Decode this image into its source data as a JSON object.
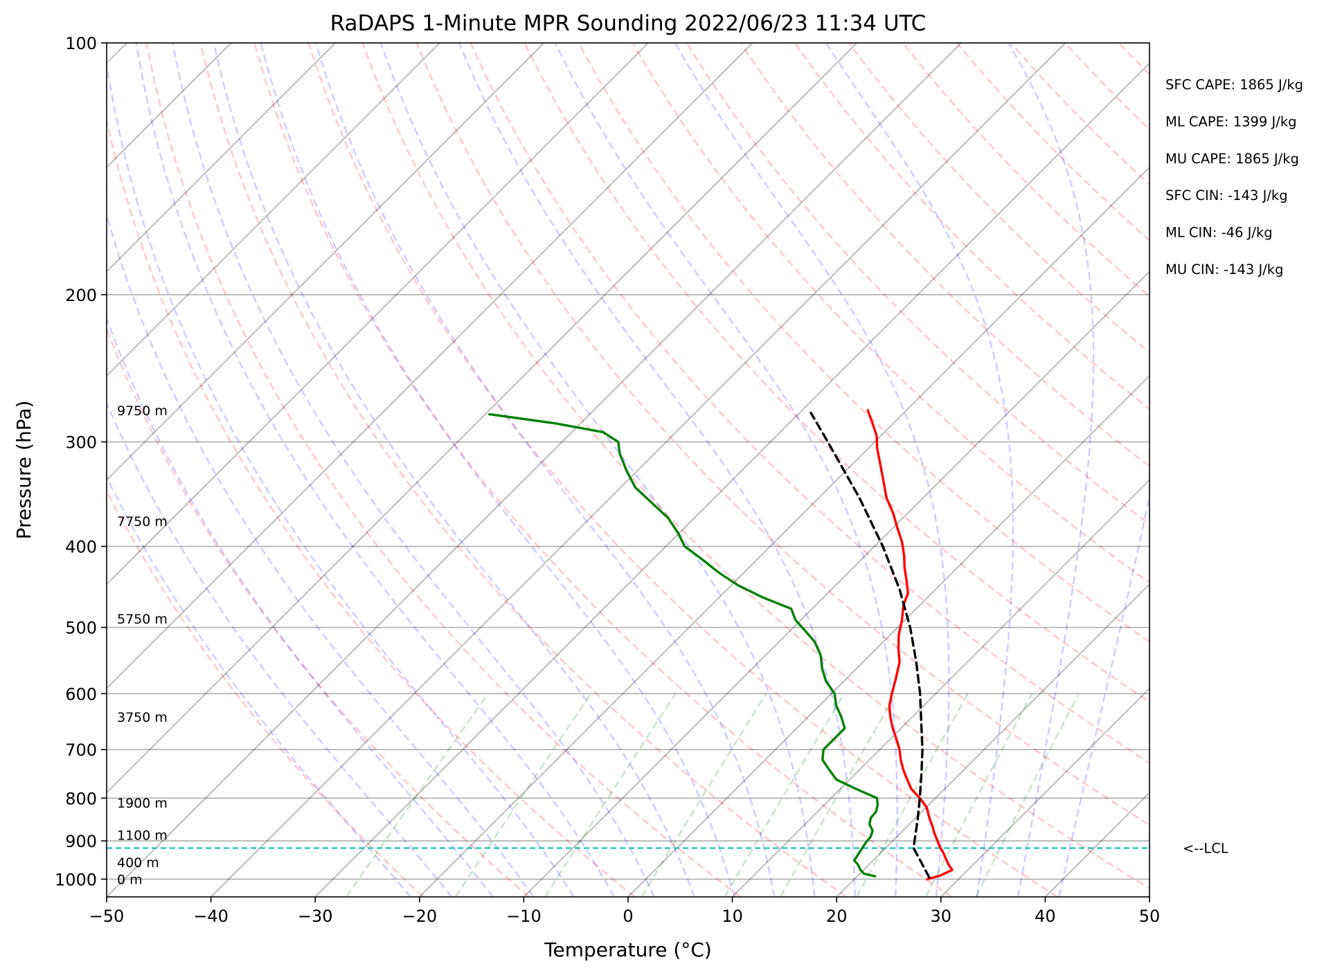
{
  "chart_data": {
    "type": "line",
    "title": "RaDAPS 1-Minute MPR Sounding 2022/06/23 11:34 UTC",
    "xlabel": "Temperature (°C)",
    "ylabel": "Pressure (hPa)",
    "xlim": [
      -50,
      50
    ],
    "ylim": [
      1050,
      100
    ],
    "y_scale": "log",
    "skew_t": true,
    "grid": true,
    "x_ticks": [
      -50,
      -40,
      -30,
      -20,
      -10,
      0,
      10,
      20,
      30,
      40,
      50
    ],
    "x_tick_labels": [
      "−50",
      "−40",
      "−30",
      "−20",
      "−10",
      "0",
      "10",
      "20",
      "30",
      "40",
      "50"
    ],
    "y_ticks": [
      1000,
      900,
      800,
      700,
      600,
      500,
      400,
      300,
      200,
      100
    ],
    "y_tick_labels": [
      "1000",
      "900",
      "800",
      "700",
      "600",
      "500",
      "400",
      "300",
      "200",
      "100"
    ],
    "series": [
      {
        "role": "temperature",
        "color": "#ff0000",
        "points": [
          [
            1000,
            27.0
          ],
          [
            990,
            27.9
          ],
          [
            975,
            28.5
          ],
          [
            960,
            27.6
          ],
          [
            945,
            26.8
          ],
          [
            930,
            26.0
          ],
          [
            915,
            25.1
          ],
          [
            900,
            24.3
          ],
          [
            880,
            23.2
          ],
          [
            866,
            22.5
          ],
          [
            850,
            21.6
          ],
          [
            835,
            20.8
          ],
          [
            820,
            20.0
          ],
          [
            800,
            18.5
          ],
          [
            780,
            16.8
          ],
          [
            760,
            15.5
          ],
          [
            740,
            14.2
          ],
          [
            720,
            13.0
          ],
          [
            700,
            11.9
          ],
          [
            680,
            10.6
          ],
          [
            660,
            9.2
          ],
          [
            640,
            7.9
          ],
          [
            620,
            6.7
          ],
          [
            600,
            5.8
          ],
          [
            575,
            4.7
          ],
          [
            550,
            3.5
          ],
          [
            530,
            2.1
          ],
          [
            510,
            0.8
          ],
          [
            490,
            -0.3
          ],
          [
            470,
            -1.6
          ],
          [
            455,
            -2.3
          ],
          [
            440,
            -3.6
          ],
          [
            425,
            -5.0
          ],
          [
            410,
            -6.3
          ],
          [
            395,
            -7.8
          ],
          [
            380,
            -9.6
          ],
          [
            365,
            -11.4
          ],
          [
            350,
            -13.5
          ],
          [
            335,
            -15.3
          ],
          [
            320,
            -17.2
          ],
          [
            305,
            -19.2
          ],
          [
            295,
            -20.4
          ],
          [
            285,
            -22.0
          ],
          [
            275,
            -23.7
          ]
        ]
      },
      {
        "role": "dewpoint",
        "color": "#008000",
        "points": [
          [
            992,
            21.7
          ],
          [
            985,
            20.4
          ],
          [
            975,
            19.7
          ],
          [
            960,
            18.9
          ],
          [
            950,
            18.2
          ],
          [
            935,
            18.0
          ],
          [
            920,
            17.8
          ],
          [
            905,
            17.6
          ],
          [
            890,
            17.5
          ],
          [
            875,
            17.1
          ],
          [
            860,
            16.2
          ],
          [
            845,
            15.7
          ],
          [
            830,
            15.6
          ],
          [
            815,
            15.1
          ],
          [
            800,
            14.4
          ],
          [
            780,
            11.5
          ],
          [
            760,
            8.7
          ],
          [
            740,
            7.1
          ],
          [
            720,
            5.5
          ],
          [
            700,
            4.6
          ],
          [
            680,
            4.6
          ],
          [
            660,
            4.6
          ],
          [
            640,
            3.2
          ],
          [
            620,
            1.6
          ],
          [
            600,
            0.3
          ],
          [
            580,
            -1.7
          ],
          [
            560,
            -3.3
          ],
          [
            540,
            -4.7
          ],
          [
            520,
            -6.6
          ],
          [
            505,
            -8.5
          ],
          [
            490,
            -10.5
          ],
          [
            475,
            -12.0
          ],
          [
            460,
            -15.9
          ],
          [
            445,
            -19.4
          ],
          [
            430,
            -22.4
          ],
          [
            415,
            -25.2
          ],
          [
            400,
            -28.2
          ],
          [
            385,
            -30.2
          ],
          [
            370,
            -32.5
          ],
          [
            355,
            -35.5
          ],
          [
            340,
            -38.6
          ],
          [
            325,
            -41.0
          ],
          [
            310,
            -43.3
          ],
          [
            300,
            -44.6
          ],
          [
            292,
            -47.0
          ],
          [
            285,
            -52.5
          ],
          [
            278,
            -59.6
          ]
        ]
      },
      {
        "role": "parcel",
        "color": "#000000",
        "dashed": true,
        "points": [
          [
            995,
            27.0
          ],
          [
            918,
            22.7
          ],
          [
            900,
            22.1
          ],
          [
            850,
            20.4
          ],
          [
            800,
            18.5
          ],
          [
            750,
            16.4
          ],
          [
            700,
            14.1
          ],
          [
            650,
            11.4
          ],
          [
            600,
            8.5
          ],
          [
            550,
            5.1
          ],
          [
            500,
            1.2
          ],
          [
            450,
            -3.5
          ],
          [
            400,
            -9.2
          ],
          [
            350,
            -16.1
          ],
          [
            300,
            -24.5
          ],
          [
            277,
            -28.9
          ]
        ]
      }
    ],
    "lcl_pressure": 918,
    "lcl_label": "<--LCL",
    "height_labels": [
      {
        "p": 1000,
        "text": "0 m"
      },
      {
        "p": 955,
        "text": "400 m"
      },
      {
        "p": 885,
        "text": "1100 m"
      },
      {
        "p": 810,
        "text": "1900 m"
      },
      {
        "p": 640,
        "text": "3750 m"
      },
      {
        "p": 488,
        "text": "5750 m"
      },
      {
        "p": 373,
        "text": "7750 m"
      },
      {
        "p": 275,
        "text": "9750 m"
      }
    ],
    "annotations": [
      "SFC CAPE: 1865 J/kg",
      "ML CAPE: 1399 J/kg",
      "MU CAPE: 1865 J/kg",
      "SFC CIN: -143 J/kg",
      "ML CIN: -46 J/kg",
      "MU CIN: -143 J/kg"
    ],
    "background_lines": {
      "dry_adiabats": {
        "color": "#ff0000",
        "opacity": 0.2,
        "dashed": true
      },
      "moist_adiabats": {
        "color": "#0000ff",
        "opacity": 0.2,
        "dashed": true
      },
      "mixing_ratio_lines": {
        "color": "#008000",
        "opacity": 0.2,
        "dashed": true
      },
      "isotherms": {
        "color": "#000000",
        "opacity": 0.3
      },
      "isobars": {
        "color": "#000000",
        "opacity": 0.3
      }
    }
  }
}
